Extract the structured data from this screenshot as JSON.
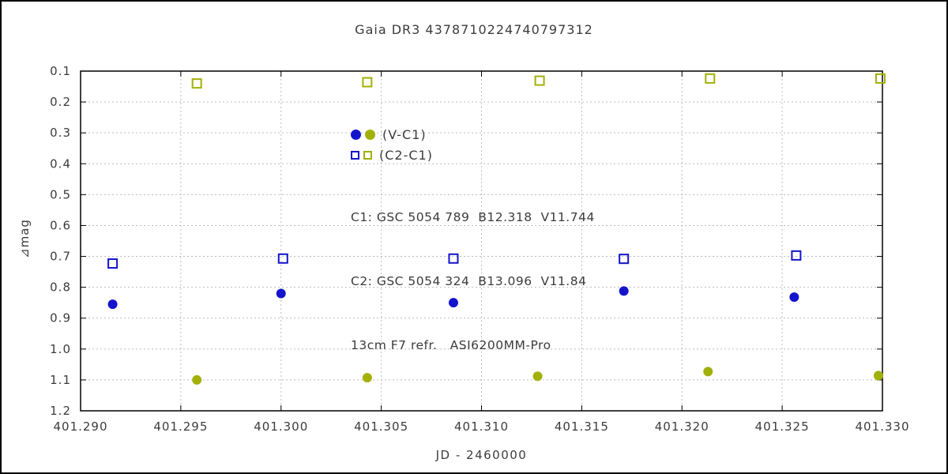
{
  "chart_data": {
    "type": "scatter",
    "title": "Gaia DR3 4378710224740797312",
    "xlabel": "JD - 2460000",
    "ylabel": "⊿mag",
    "xlim": [
      401.29,
      401.33
    ],
    "ylim": [
      0.1,
      1.2
    ],
    "y_axis_inverted": true,
    "grid": true,
    "xticks": [
      401.29,
      401.295,
      401.3,
      401.305,
      401.31,
      401.315,
      401.32,
      401.325,
      401.33
    ],
    "xtick_labels": [
      "401.290",
      "401.295",
      "401.300",
      "401.305",
      "401.310",
      "401.315",
      "401.320",
      "401.325",
      "401.330"
    ],
    "yticks": [
      0.1,
      0.2,
      0.3,
      0.4,
      0.5,
      0.6,
      0.7,
      0.8,
      0.9,
      1.0,
      1.1,
      1.2
    ],
    "ytick_labels": [
      "0.1",
      "0.2",
      "0.3",
      "0.4",
      "0.5",
      "0.6",
      "0.7",
      "0.8",
      "0.9",
      "1.0",
      "1.1",
      "1.2"
    ],
    "colors": {
      "blue": "#1414cc",
      "olive": "#a2b007"
    },
    "series": [
      {
        "name": "V-C1 (blue)",
        "marker": "circle",
        "color": "blue",
        "points": [
          [
            401.2916,
            0.855
          ],
          [
            401.3,
            0.82
          ],
          [
            401.3086,
            0.85
          ],
          [
            401.3171,
            0.812
          ],
          [
            401.3256,
            0.832
          ]
        ]
      },
      {
        "name": "V-C1 (olive)",
        "marker": "circle",
        "color": "olive",
        "points": [
          [
            401.2958,
            1.1
          ],
          [
            401.3043,
            1.093
          ],
          [
            401.3128,
            1.088
          ],
          [
            401.3213,
            1.073
          ],
          [
            401.3298,
            1.086
          ]
        ]
      },
      {
        "name": "C2-C1 (blue)",
        "marker": "square",
        "color": "blue",
        "points": [
          [
            401.2916,
            0.723
          ],
          [
            401.3001,
            0.707
          ],
          [
            401.3086,
            0.707
          ],
          [
            401.3171,
            0.708
          ],
          [
            401.3257,
            0.697
          ]
        ]
      },
      {
        "name": "C2-C1 (olive)",
        "marker": "square",
        "color": "olive",
        "points": [
          [
            401.2958,
            0.14
          ],
          [
            401.3043,
            0.136
          ],
          [
            401.3129,
            0.131
          ],
          [
            401.3214,
            0.124
          ],
          [
            401.3299,
            0.124
          ]
        ]
      }
    ],
    "legend": [
      {
        "label": "(V-C1)"
      },
      {
        "label": "(C2-C1)"
      }
    ],
    "annotations": [
      "C1: GSC 5054 789  B12.318  V11.744",
      "C2: GSC 5054 324  B13.096  V11.84",
      "13cm F7 refr.   ASI6200MM-Pro"
    ]
  }
}
